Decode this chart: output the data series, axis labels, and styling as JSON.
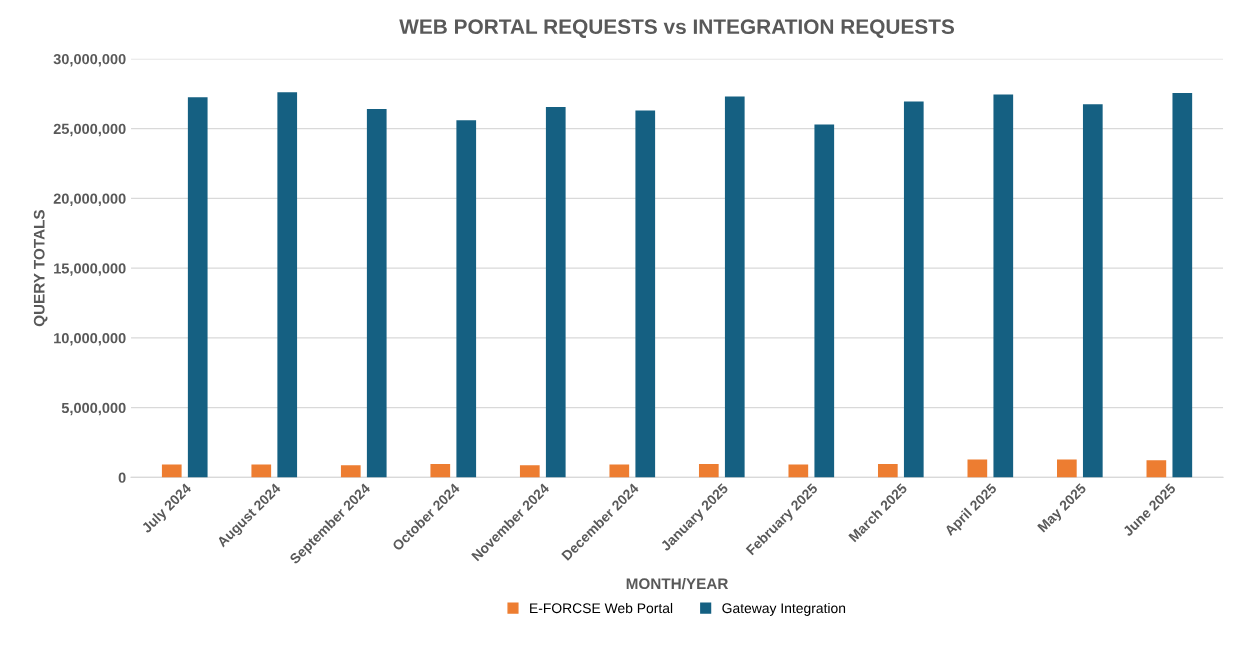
{
  "chart_data": {
    "type": "bar",
    "title": "WEB PORTAL REQUESTS vs INTEGRATION REQUESTS",
    "xlabel": "MONTH/YEAR",
    "ylabel": "QUERY TOTALS",
    "categories": [
      "July 2024",
      "August 2024",
      "September 2024",
      "October 2024",
      "November 2024",
      "December 2024",
      "January 2025",
      "February 2025",
      "March 2025",
      "April 2025",
      "May 2025",
      "June 2025"
    ],
    "series": [
      {
        "name": "E-FORCSE Web Portal",
        "color": "#ed7d31",
        "values": [
          920000,
          920000,
          870000,
          970000,
          870000,
          920000,
          970000,
          920000,
          970000,
          1280000,
          1280000,
          1230000
        ]
      },
      {
        "name": "Gateway Integration",
        "color": "#156082",
        "values": [
          27250000,
          27600000,
          26400000,
          25600000,
          26550000,
          26300000,
          27300000,
          25300000,
          26950000,
          27450000,
          26750000,
          27550000
        ]
      }
    ],
    "ylim": [
      0,
      30000000
    ],
    "yticks": [
      {
        "value": 0,
        "label": "0"
      },
      {
        "value": 5000000,
        "label": "5,000,000"
      },
      {
        "value": 10000000,
        "label": "10,000,000"
      },
      {
        "value": 15000000,
        "label": "15,000,000"
      },
      {
        "value": 20000000,
        "label": "20,000,000"
      },
      {
        "value": 25000000,
        "label": "25,000,000"
      },
      {
        "value": 30000000,
        "label": "30,000,000"
      }
    ],
    "grid": "y",
    "legend": "bottom"
  }
}
